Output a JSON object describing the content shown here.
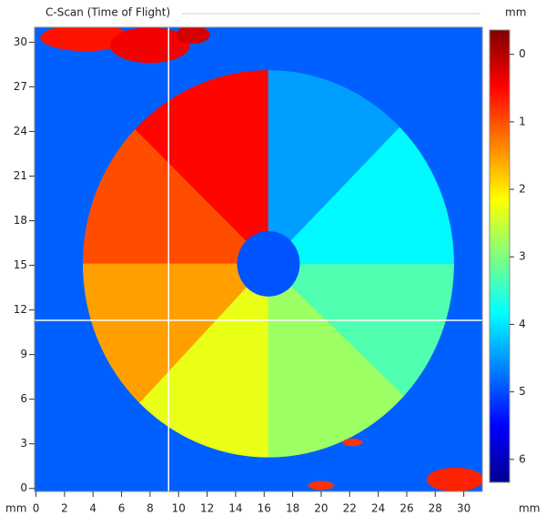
{
  "chart_data": {
    "type": "heatmap",
    "title": "C-Scan (Time of Flight)",
    "x_label": "mm",
    "y_label": "mm",
    "colorbar_label": "mm",
    "colormap": "jet",
    "xlim": [
      -0.1,
      31.3
    ],
    "ylim": [
      -0.2,
      31
    ],
    "xticks": [
      0,
      2,
      4,
      6,
      8,
      10,
      12,
      14,
      16,
      18,
      20,
      22,
      24,
      26,
      28,
      30
    ],
    "yticks": [
      0,
      3,
      6,
      9,
      12,
      15,
      18,
      21,
      24,
      27,
      30
    ],
    "clim": [
      -0.36,
      6.34
    ],
    "cticks": [
      0,
      1,
      2,
      3,
      4,
      5,
      6
    ],
    "background_value": 4.87,
    "disk": {
      "center": [
        16.3,
        15.1
      ],
      "radius": 13,
      "hole_radius": 2.2,
      "hole_value": 4.95,
      "sectors": [
        {
          "start": 90,
          "end": 136,
          "value": 0.51
        },
        {
          "start": 136,
          "end": 180,
          "value": 0.98
        },
        {
          "start": 180,
          "end": 226,
          "value": 1.52
        },
        {
          "start": 226,
          "end": 270,
          "value": 2.3
        },
        {
          "start": 270,
          "end": 317,
          "value": 2.8
        },
        {
          "start": 317,
          "end": 360,
          "value": 3.3
        },
        {
          "start": 0,
          "end": 45,
          "value": 3.86
        },
        {
          "start": 45,
          "end": 90,
          "value": 4.46
        }
      ]
    },
    "spots": [
      {
        "x": 3.5,
        "y": 30.3,
        "rx": 3.2,
        "ry": 0.9,
        "value": 0.6
      },
      {
        "x": 8,
        "y": 29.8,
        "rx": 2.8,
        "ry": 1.2,
        "value": 0.4
      },
      {
        "x": 11,
        "y": 30.5,
        "rx": 1.2,
        "ry": 0.6,
        "value": 0.2
      },
      {
        "x": 29.4,
        "y": 0.6,
        "rx": 2,
        "ry": 0.8,
        "value": 0.7
      },
      {
        "x": 20,
        "y": 0.2,
        "rx": 0.9,
        "ry": 0.3,
        "value": 0.8
      },
      {
        "x": 22.2,
        "y": 3.1,
        "rx": 0.7,
        "ry": 0.25,
        "value": 0.8
      }
    ],
    "cursor": {
      "x": 9.3,
      "y": 11.3
    }
  }
}
